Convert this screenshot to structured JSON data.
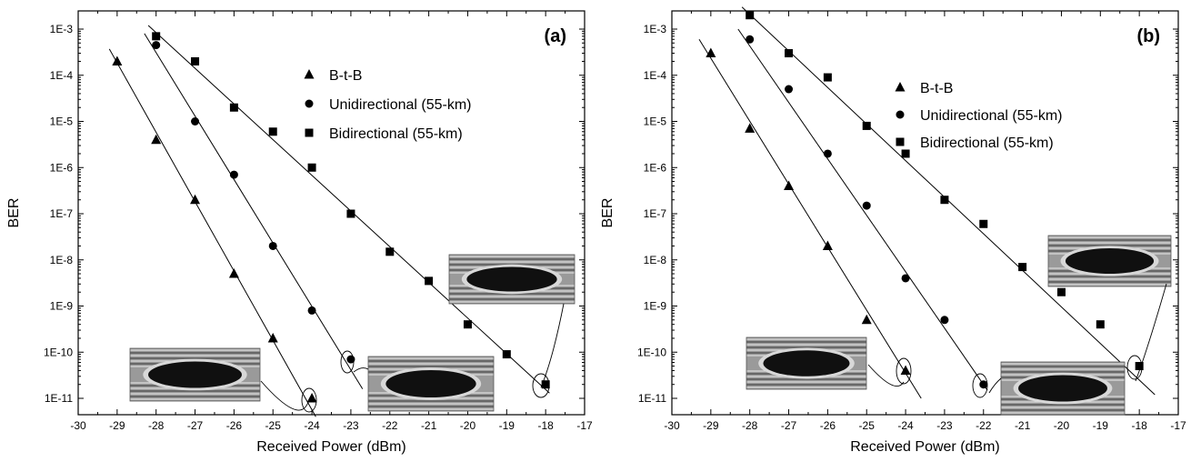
{
  "chart_data": [
    {
      "type": "scatter",
      "panel_label": "(a)",
      "xlabel": "Received Power (dBm)",
      "ylabel": "BER",
      "xlim": [
        -30,
        -17
      ],
      "ylim": [
        1e-11,
        0.001
      ],
      "y_scale": "log",
      "x_ticks": [
        "-30",
        "-29",
        "-28",
        "-27",
        "-26",
        "-25",
        "-24",
        "-23",
        "-22",
        "-21",
        "-20",
        "-19",
        "-18",
        "-17"
      ],
      "y_ticks": [
        "1E-11",
        "1E-10",
        "1E-9",
        "1E-8",
        "1E-7",
        "1E-6",
        "1E-5",
        "1E-4",
        "1E-3"
      ],
      "legend_position": "top-center",
      "series": [
        {
          "name": "B-t-B",
          "marker": "triangle",
          "x": [
            -29,
            -28,
            -27,
            -26,
            -25,
            -24
          ],
          "y": [
            0.0002,
            4e-06,
            2e-07,
            5e-09,
            2e-10,
            1e-11
          ]
        },
        {
          "name": "Unidirectional (55-km)",
          "marker": "circle",
          "x": [
            -28,
            -27,
            -26,
            -25,
            -24,
            -23
          ],
          "y": [
            0.00045,
            1e-05,
            7e-07,
            2e-08,
            8e-10,
            7e-11
          ]
        },
        {
          "name": "Bidirectional (55-km)",
          "marker": "square",
          "x": [
            -28,
            -27,
            -26,
            -25,
            -24,
            -23,
            -22,
            -21,
            -20,
            -19,
            -18
          ],
          "y": [
            0.0007,
            0.0002,
            2e-05,
            6e-06,
            1e-06,
            1e-07,
            1.5e-08,
            3.5e-09,
            4e-10,
            9e-11,
            2e-11
          ]
        }
      ],
      "fit_lines": [
        {
          "from": [
            -29.2,
            0.00037
          ],
          "to": [
            -23.9,
            4e-12
          ]
        },
        {
          "from": [
            -28.3,
            0.0008
          ],
          "to": [
            -22.7,
            1.6e-11
          ]
        },
        {
          "from": [
            -28.2,
            0.0012
          ],
          "to": [
            -17.9,
            1.3e-11
          ]
        }
      ]
    },
    {
      "type": "scatter",
      "panel_label": "(b)",
      "xlabel": "Received Power (dBm)",
      "ylabel": "BER",
      "xlim": [
        -30,
        -17
      ],
      "ylim": [
        1e-11,
        0.001
      ],
      "y_scale": "log",
      "x_ticks": [
        "-30",
        "-29",
        "-28",
        "-27",
        "-26",
        "-25",
        "-24",
        "-23",
        "-22",
        "-21",
        "-20",
        "-19",
        "-18",
        "-17"
      ],
      "y_ticks": [
        "1E-11",
        "1E-10",
        "1E-9",
        "1E-8",
        "1E-7",
        "1E-6",
        "1E-5",
        "1E-4",
        "1E-3"
      ],
      "legend_position": "top-right",
      "series": [
        {
          "name": "B-t-B",
          "marker": "triangle",
          "x": [
            -29,
            -28,
            -27,
            -26,
            -25,
            -24
          ],
          "y": [
            0.0003,
            7e-06,
            4e-07,
            2e-08,
            5e-10,
            4e-11
          ]
        },
        {
          "name": "Unidirectional (55-km)",
          "marker": "circle",
          "x": [
            -28,
            -27,
            -26,
            -25,
            -24,
            -23,
            -22
          ],
          "y": [
            0.0006,
            5e-05,
            2e-06,
            1.5e-07,
            4e-09,
            5e-10,
            2e-11
          ]
        },
        {
          "name": "Bidirectional (55-km)",
          "marker": "square",
          "x": [
            -28,
            -27,
            -26,
            -25,
            -24,
            -23,
            -22,
            -21,
            -20,
            -19,
            -18
          ],
          "y": [
            0.002,
            0.0003,
            9e-05,
            8e-06,
            2e-06,
            2e-07,
            6e-08,
            7e-09,
            2e-09,
            4e-10,
            5e-11
          ]
        }
      ],
      "fit_lines": [
        {
          "from": [
            -29.3,
            0.0006
          ],
          "to": [
            -23.6,
            1e-11
          ]
        },
        {
          "from": [
            -28.3,
            0.001
          ],
          "to": [
            -21.9,
            1.5e-11
          ]
        },
        {
          "from": [
            -28.2,
            0.003
          ],
          "to": [
            -17.6,
            1.2e-11
          ]
        }
      ]
    }
  ]
}
